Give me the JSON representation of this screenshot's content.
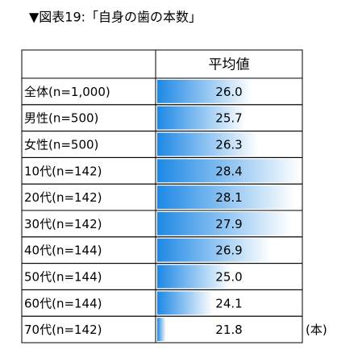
{
  "title": "▼図表19:「自身の歯の本数」",
  "table": {
    "column_header": "平均値",
    "rows": [
      [
        "全体(n=1,000)",
        "26.0"
      ],
      [
        "男性(n=500)",
        "25.7"
      ],
      [
        "女性(n=500)",
        "26.3"
      ],
      [
        "10代(n=142)",
        "28.4"
      ],
      [
        "20代(n=142)",
        "28.1"
      ],
      [
        "30代(n=142)",
        "27.9"
      ],
      [
        "40代(n=144)",
        "26.9"
      ],
      [
        "50代(n=144)",
        "25.0"
      ],
      [
        "60代(n=144)",
        "24.1"
      ],
      [
        "70代(n=142)",
        "21.8"
      ]
    ],
    "unit": "(本)",
    "bar_color": "#1e88e5"
  }
}
